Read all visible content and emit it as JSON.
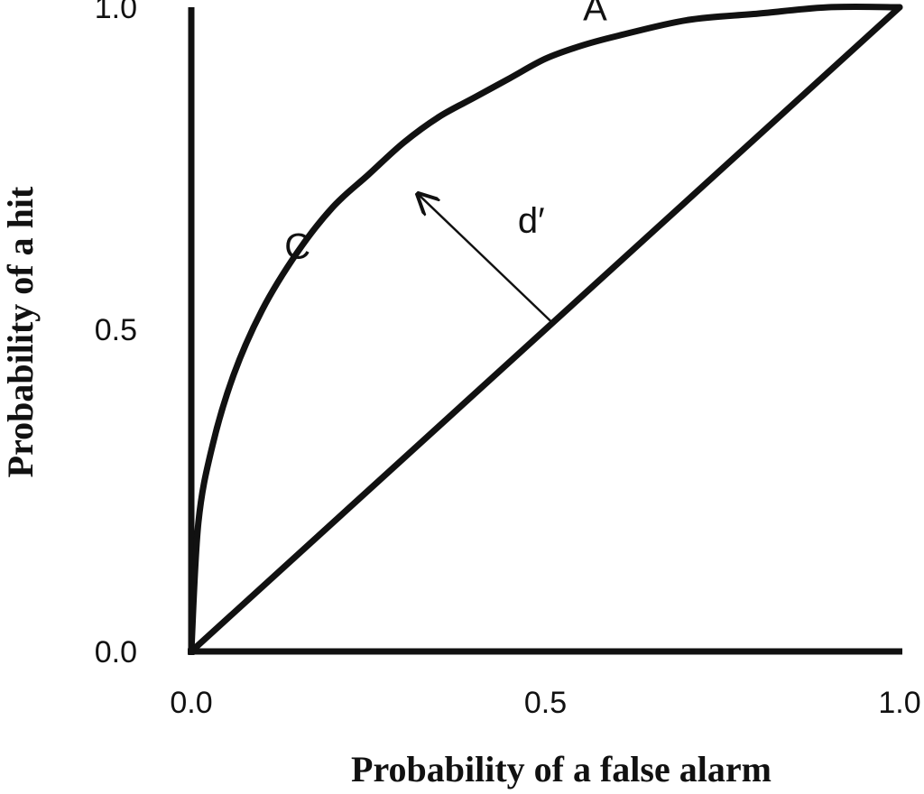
{
  "chart_data": {
    "type": "line",
    "title": "",
    "xlabel": "Probability of a false alarm",
    "ylabel": "Probability of a hit",
    "xlim": [
      0,
      1
    ],
    "ylim": [
      0,
      1
    ],
    "x_ticks": [
      "0.0",
      "0.5",
      "1.0"
    ],
    "y_ticks": [
      "0.0",
      "0.5",
      "1.0"
    ],
    "grid": false,
    "legend": "none",
    "series": [
      {
        "name": "",
        "x": [
          0,
          0.01,
          0.03,
          0.06,
          0.1,
          0.15,
          0.2,
          0.25,
          0.3,
          0.35,
          0.4,
          0.45,
          0.5,
          0.55,
          0.6,
          0.7,
          0.8,
          0.9,
          1.0
        ],
        "y": [
          0,
          0.2,
          0.32,
          0.43,
          0.53,
          0.62,
          0.69,
          0.74,
          0.79,
          0.83,
          0.86,
          0.89,
          0.92,
          0.94,
          0.955,
          0.98,
          0.99,
          1.0,
          1.0
        ]
      },
      {
        "name": "",
        "x": [
          0,
          1
        ],
        "y": [
          0,
          1
        ]
      }
    ],
    "annotations": [
      {
        "text": "A",
        "x": 0.57,
        "y": 0.98
      },
      {
        "text": "C",
        "x": 0.15,
        "y": 0.61
      },
      {
        "text": "d′",
        "x": 0.48,
        "y": 0.65
      }
    ],
    "arrow": {
      "from": [
        0.51,
        0.51
      ],
      "to": [
        0.32,
        0.71
      ]
    }
  }
}
